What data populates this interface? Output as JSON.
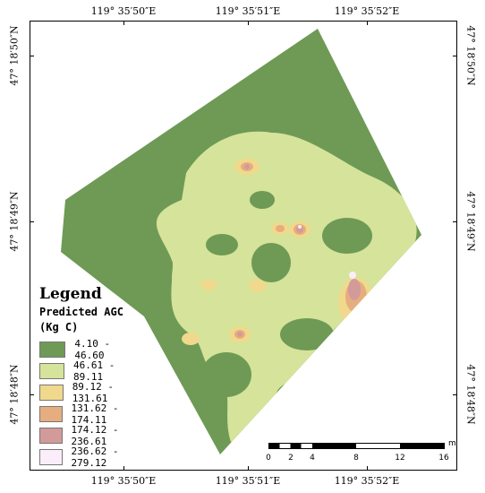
{
  "coordinates": {
    "top": [
      "119° 35′50″E",
      "119° 35′51″E",
      "119° 35′52″E"
    ],
    "bottom": [
      "119° 35′50″E",
      "119° 35′51″E",
      "119° 35′52″E"
    ],
    "left": [
      "47° 18′50″N",
      "47° 18′49″N",
      "47° 18′48″N"
    ],
    "right": [
      "47° 18′50″N",
      "47° 18′49″N",
      "47° 18′48″N"
    ]
  },
  "legend": {
    "title": "Legend",
    "subtitle_line1": "Predicted  AGC",
    "subtitle_line2": "(Kg C)",
    "classes": [
      {
        "label": "4.10  -  46.60",
        "color": "#6e9a55"
      },
      {
        "label": "46.61  -  89.11",
        "color": "#d6e39a"
      },
      {
        "label": "89.12  -  131.61",
        "color": "#f0d98c"
      },
      {
        "label": "131.62  -  174.11",
        "color": "#e6ad7f"
      },
      {
        "label": "174.12  -  236.61",
        "color": "#d39a9a"
      },
      {
        "label": "236.62  -  279.12",
        "color": "#fbeefa"
      }
    ]
  },
  "scale_bar": {
    "ticks": [
      "0",
      "2",
      "4",
      "8",
      "12",
      "16"
    ],
    "unit": "m"
  }
}
